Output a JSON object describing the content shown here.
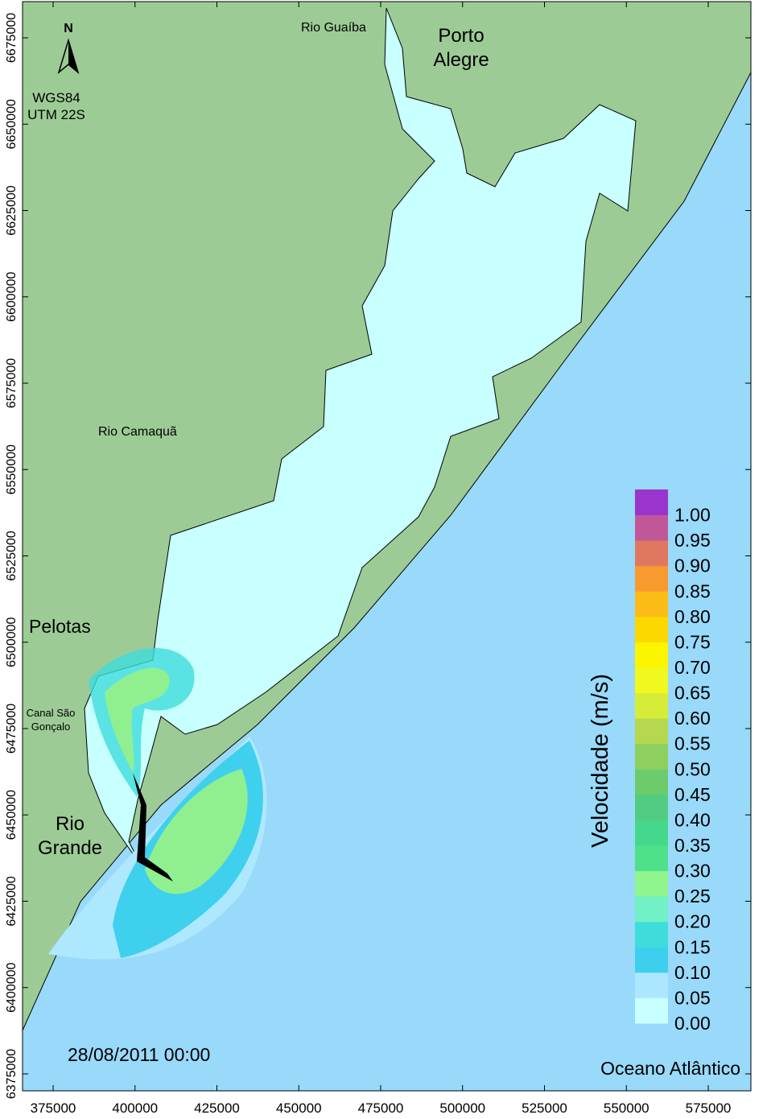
{
  "map": {
    "xlim": [
      365660,
      588020
    ],
    "ylim": [
      6370100,
      6685490
    ],
    "xticks": [
      375000,
      400000,
      425000,
      450000,
      475000,
      500000,
      525000,
      550000,
      575000
    ],
    "yticks": [
      6375000,
      6400000,
      6425000,
      6450000,
      6475000,
      6500000,
      6525000,
      6550000,
      6575000,
      6600000,
      6625000,
      6650000,
      6675000
    ],
    "north": "N",
    "datum": [
      "WGS84",
      "UTM 22S"
    ],
    "places": [
      {
        "lines": [
          "Rio Guaíba"
        ]
      },
      {
        "lines": [
          "Porto",
          "Alegre"
        ]
      },
      {
        "lines": [
          "Rio Camaquã"
        ]
      },
      {
        "lines": [
          "Pelotas"
        ]
      },
      {
        "lines": [
          "Canal São",
          "Gonçalo"
        ]
      },
      {
        "lines": [
          "Rio",
          "Grande"
        ]
      },
      {
        "lines": [
          "Oceano Atlântico"
        ]
      }
    ],
    "date": "28/08/2011 00:00",
    "colorbar": {
      "title": "Velocidade (m/s)",
      "levels": [
        {
          "label": "0.00",
          "color": "#c8ffff"
        },
        {
          "label": "0.05",
          "color": "#ade6ff"
        },
        {
          "label": "0.10",
          "color": "#3fcfee"
        },
        {
          "label": "0.15",
          "color": "#3fdcdc"
        },
        {
          "label": "0.20",
          "color": "#72f0c6"
        },
        {
          "label": "0.25",
          "color": "#8ff58c"
        },
        {
          "label": "0.30",
          "color": "#4fe08a"
        },
        {
          "label": "0.35",
          "color": "#45d88c"
        },
        {
          "label": "0.40",
          "color": "#52cc80"
        },
        {
          "label": "0.45",
          "color": "#6ccc6c"
        },
        {
          "label": "0.50",
          "color": "#8ed060"
        },
        {
          "label": "0.55",
          "color": "#b5d850"
        },
        {
          "label": "0.60",
          "color": "#d6ec38"
        },
        {
          "label": "0.65",
          "color": "#f0f820"
        },
        {
          "label": "0.70",
          "color": "#fbf500"
        },
        {
          "label": "0.75",
          "color": "#fcd800"
        },
        {
          "label": "0.80",
          "color": "#fcbc18"
        },
        {
          "label": "0.85",
          "color": "#f89a30"
        },
        {
          "label": "0.90",
          "color": "#e07860"
        },
        {
          "label": "0.95",
          "color": "#c05898"
        },
        {
          "label": "1.00",
          "color": "#9a35cc"
        }
      ]
    }
  }
}
